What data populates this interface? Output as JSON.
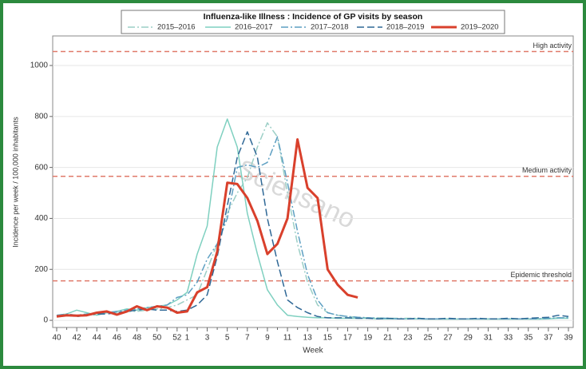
{
  "chart_data": {
    "type": "line",
    "title": "Influenza-like Illness : Incidence of GP visits by season",
    "xlabel": "Week",
    "ylabel": "Incidence per week / 100,000 inhabitants",
    "watermark": "Sciensano",
    "categories": [
      "40",
      null,
      "42",
      null,
      "44",
      null,
      "46",
      null,
      "48",
      null,
      "50",
      null,
      "52",
      "1",
      null,
      "3",
      null,
      "5",
      null,
      "7",
      null,
      "9",
      null,
      "11",
      null,
      "13",
      null,
      "15",
      null,
      "17",
      null,
      "19",
      null,
      "21",
      null,
      "23",
      null,
      "25",
      null,
      "27",
      null,
      "29",
      null,
      "31",
      null,
      "33",
      null,
      "35",
      null,
      "37",
      null,
      "39"
    ],
    "ylim": [
      -28,
      1116
    ],
    "yticks": [
      0,
      200,
      400,
      600,
      800,
      1000
    ],
    "grid": true,
    "reference_lines": [
      {
        "label": "High activity",
        "value": 1055
      },
      {
        "label": "Medium activity",
        "value": 565
      },
      {
        "label": "Epidemic threshold",
        "value": 155
      }
    ],
    "reference_color": "#e07a6a",
    "series": [
      {
        "name": "2015–2016",
        "color": "#9ccfc6",
        "style": "dashdot",
        "width": 1.5,
        "values": [
          20,
          20,
          20,
          25,
          20,
          30,
          30,
          35,
          35,
          40,
          45,
          50,
          60,
          80,
          100,
          200,
          300,
          420,
          500,
          560,
          680,
          775,
          720,
          500,
          300,
          150,
          60,
          30,
          20,
          15,
          12,
          10,
          10,
          8,
          8,
          8,
          8,
          6,
          6,
          6,
          6,
          6,
          6,
          6,
          6,
          6,
          6,
          6,
          6,
          8,
          10,
          10
        ]
      },
      {
        "name": "2016–2017",
        "color": "#7fd0c0",
        "style": "solid",
        "width": 1.5,
        "values": [
          20,
          25,
          40,
          30,
          20,
          30,
          35,
          45,
          40,
          50,
          55,
          60,
          80,
          110,
          260,
          370,
          680,
          790,
          680,
          420,
          260,
          120,
          60,
          20,
          15,
          12,
          10,
          10,
          8,
          8,
          8,
          8,
          6,
          6,
          6,
          6,
          6,
          5,
          5,
          5,
          5,
          5,
          5,
          5,
          5,
          5,
          5,
          5,
          5,
          6,
          8,
          8
        ]
      },
      {
        "name": "2017–2018",
        "color": "#5d9fc2",
        "style": "dashdot",
        "width": 1.5,
        "values": [
          20,
          25,
          20,
          25,
          25,
          30,
          35,
          40,
          45,
          50,
          55,
          60,
          90,
          100,
          150,
          240,
          300,
          400,
          600,
          610,
          600,
          620,
          720,
          540,
          350,
          180,
          80,
          30,
          20,
          15,
          12,
          10,
          8,
          8,
          6,
          6,
          6,
          6,
          6,
          6,
          6,
          6,
          6,
          6,
          6,
          6,
          6,
          6,
          6,
          8,
          10,
          10
        ]
      },
      {
        "name": "2018–2019",
        "color": "#2f6896",
        "style": "dash",
        "width": 1.5,
        "values": [
          15,
          20,
          15,
          20,
          25,
          25,
          30,
          35,
          40,
          45,
          40,
          40,
          35,
          40,
          60,
          100,
          250,
          450,
          640,
          740,
          640,
          400,
          230,
          80,
          50,
          30,
          15,
          10,
          10,
          10,
          8,
          8,
          6,
          8,
          6,
          6,
          8,
          6,
          6,
          8,
          6,
          6,
          8,
          6,
          6,
          8,
          6,
          8,
          10,
          12,
          20,
          15
        ]
      },
      {
        "name": "2019–2020",
        "color": "#d9402c",
        "style": "solid",
        "width": 3,
        "values": [
          15,
          20,
          18,
          20,
          30,
          35,
          22,
          35,
          55,
          40,
          55,
          50,
          30,
          35,
          110,
          130,
          270,
          540,
          535,
          480,
          390,
          260,
          300,
          400,
          710,
          520,
          480,
          200,
          140,
          100,
          90,
          null,
          null,
          null,
          null,
          null,
          null,
          null,
          null,
          null,
          null,
          null,
          null,
          null,
          null,
          null,
          null,
          null,
          null,
          null,
          null,
          null
        ]
      }
    ]
  }
}
